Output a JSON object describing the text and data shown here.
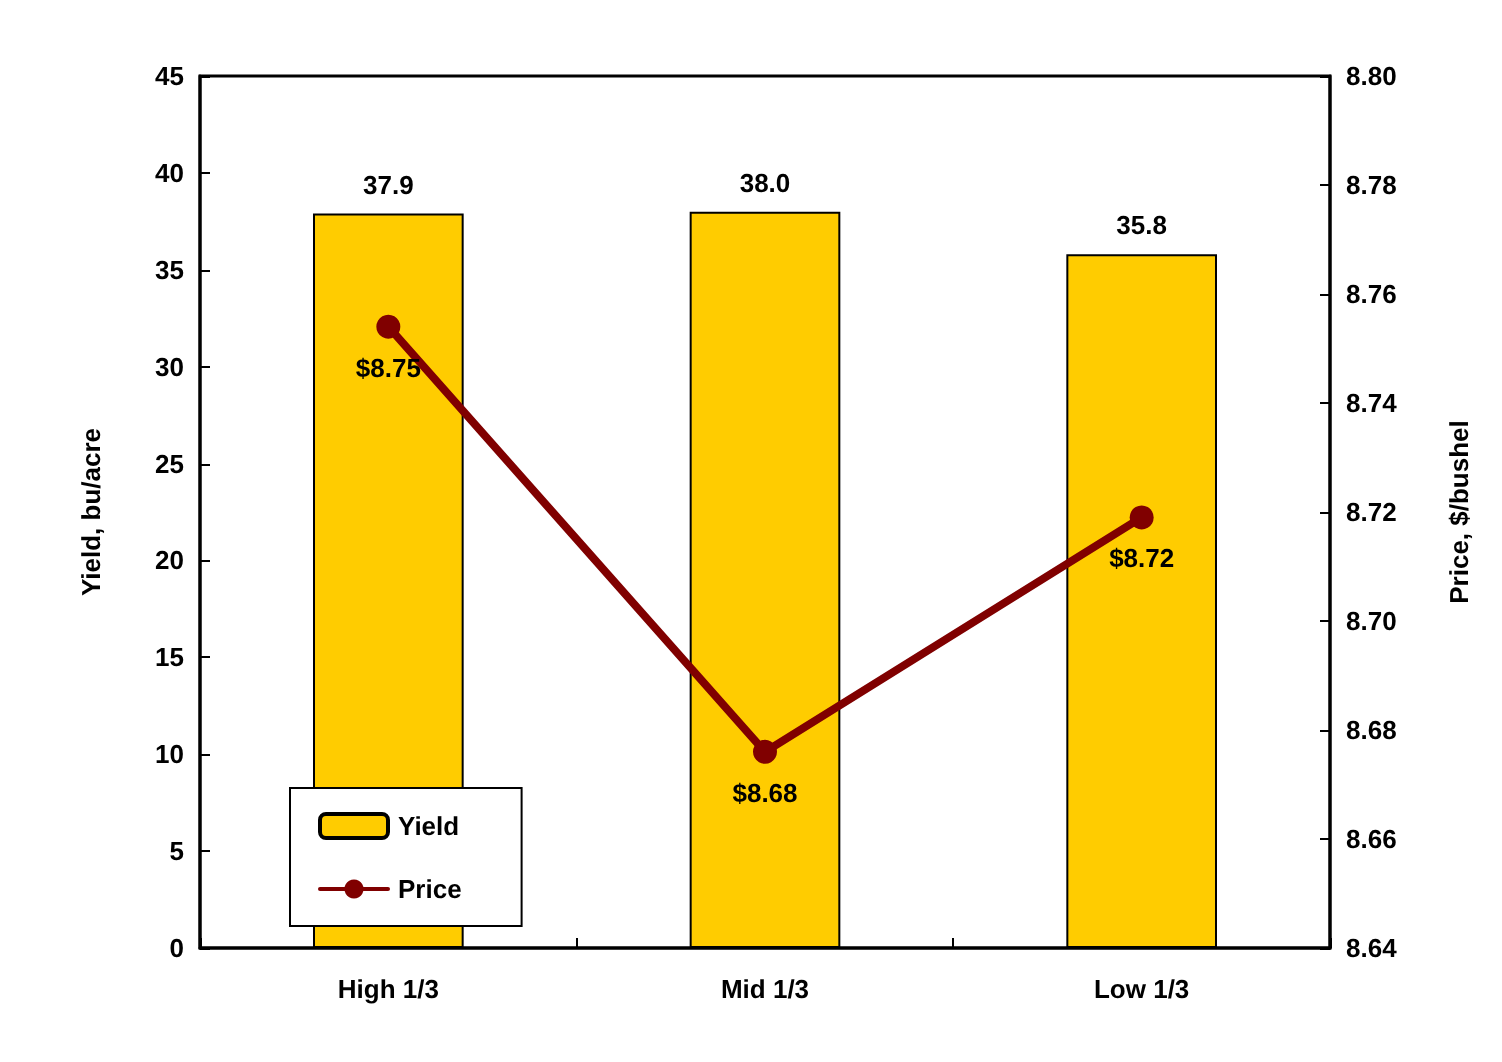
{
  "chart_data": {
    "type": "bar",
    "categories": [
      "High 1/3",
      "Mid 1/3",
      "Low 1/3"
    ],
    "ylabel": "Yield, bu/acre",
    "y2label": "Price, $/bushel",
    "series": [
      {
        "name": "Yield",
        "color": "#ffcc00",
        "values": [
          37.9,
          38.0,
          35.8
        ],
        "value_labels": [
          "37.9",
          "38.0",
          "35.8"
        ]
      },
      {
        "name": "Price",
        "type": "line",
        "axis": "y2",
        "color": "#800000",
        "values": [
          8.754,
          8.676,
          8.719
        ],
        "value_labels": [
          "$8.75",
          "$8.68",
          "$8.72"
        ],
        "marker": "circle",
        "line_style": "solid"
      }
    ],
    "ylim": [
      0,
      45
    ],
    "yticks": [
      0,
      5,
      10,
      15,
      20,
      25,
      30,
      35,
      40,
      45
    ],
    "y2lim": [
      8.64,
      8.8
    ],
    "y2ticks": [
      8.64,
      8.66,
      8.68,
      {
        "value": 8.7,
        "label": "8.70"
      },
      8.72,
      8.74,
      8.76,
      8.78,
      {
        "value": 8.8,
        "label": "8.80"
      }
    ],
    "grid": false,
    "legend": "bottom left"
  }
}
